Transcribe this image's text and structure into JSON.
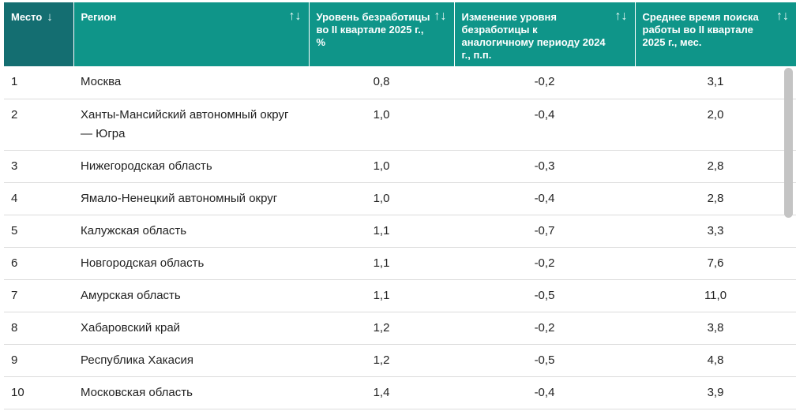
{
  "columns": [
    {
      "label": "Место",
      "sort_icon": "arrow-down-icon",
      "sort_glyph": "↓"
    },
    {
      "label": "Регион",
      "sort_icon": "sort-arrows-icon",
      "sort_glyph": "↑↓"
    },
    {
      "label": "Уровень безработицы во II квартале 2025 г., %",
      "sort_icon": "sort-arrows-icon",
      "sort_glyph": "↑↓"
    },
    {
      "label": "Изменение уровня безработицы к аналогичному периоду 2024 г., п.п.",
      "sort_icon": "sort-arrows-icon",
      "sort_glyph": "↑↓"
    },
    {
      "label": "Среднее время поиска работы во II квартале 2025 г., мес.",
      "sort_icon": "sort-arrows-icon",
      "sort_glyph": "↑↓"
    }
  ],
  "rows": [
    {
      "rank": "1",
      "region": "Москва",
      "unemployment": "0,8",
      "change": "-0,2",
      "search_time": "3,1"
    },
    {
      "rank": "2",
      "region": "Ханты-Мансийский автономный округ — Югра",
      "unemployment": "1,0",
      "change": "-0,4",
      "search_time": "2,0"
    },
    {
      "rank": "3",
      "region": "Нижегородская область",
      "unemployment": "1,0",
      "change": "-0,3",
      "search_time": "2,8"
    },
    {
      "rank": "4",
      "region": "Ямало-Ненецкий автономный округ",
      "unemployment": "1,0",
      "change": "-0,4",
      "search_time": "2,8"
    },
    {
      "rank": "5",
      "region": "Калужская область",
      "unemployment": "1,1",
      "change": "-0,7",
      "search_time": "3,3"
    },
    {
      "rank": "6",
      "region": "Новгородская область",
      "unemployment": "1,1",
      "change": "-0,2",
      "search_time": "7,6"
    },
    {
      "rank": "7",
      "region": "Амурская область",
      "unemployment": "1,1",
      "change": "-0,5",
      "search_time": "11,0"
    },
    {
      "rank": "8",
      "region": "Хабаровский край",
      "unemployment": "1,2",
      "change": "-0,2",
      "search_time": "3,8"
    },
    {
      "rank": "9",
      "region": "Республика Хакасия",
      "unemployment": "1,2",
      "change": "-0,5",
      "search_time": "4,8"
    },
    {
      "rank": "10",
      "region": "Московская область",
      "unemployment": "1,4",
      "change": "-0,4",
      "search_time": "3,9"
    }
  ],
  "colors": {
    "header_bg": "#0f9589",
    "first_header_bg": "#146e71",
    "header_text": "#ffffff"
  }
}
